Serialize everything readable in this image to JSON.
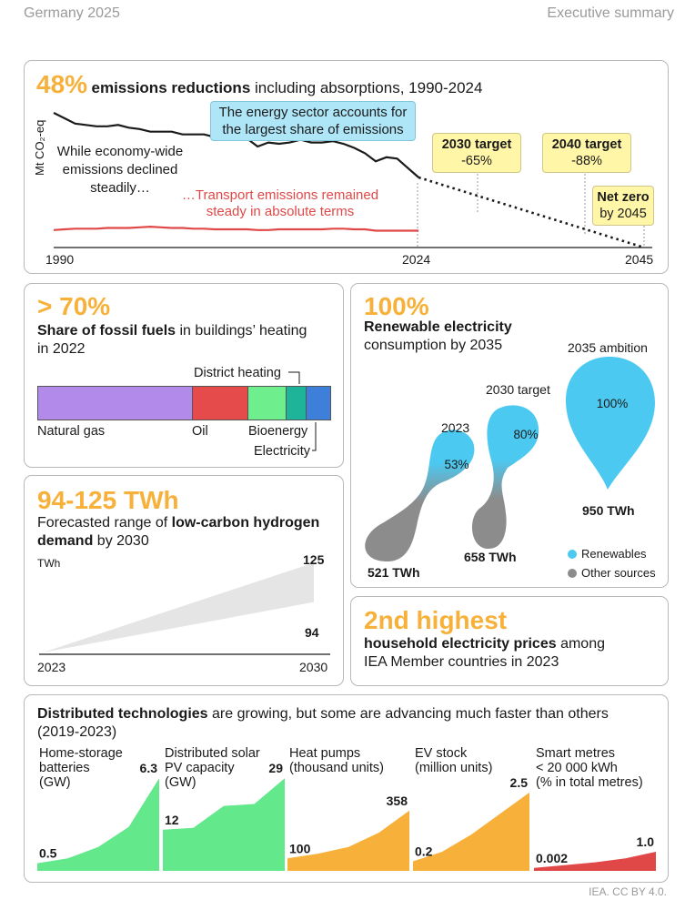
{
  "header": {
    "left": "Germany 2025",
    "right": "Executive summary"
  },
  "emissions": {
    "big": "48%",
    "title_bold": "emissions reductions",
    "title_rest": " including absorptions, 1990-2024",
    "y_label": "Mt CO₂-eq",
    "note_economy": [
      "While economy-wide",
      "emissions declined",
      "steadily…"
    ],
    "note_energy": [
      "The energy sector accounts for",
      "the largest share of emissions"
    ],
    "note_transport": [
      "…Transport emissions remained",
      "steady in absolute terms"
    ],
    "target_2030": [
      "2030 target",
      "-65%"
    ],
    "target_2040": [
      "2040 target",
      "-88%"
    ],
    "net_zero": [
      "Net zero",
      "by 2045"
    ],
    "x_ticks": [
      "1990",
      "2024",
      "2045"
    ],
    "colors": {
      "total": "#1a1a1a",
      "transport": "#e04848",
      "callout_energy": "#aee6f8",
      "callout_target": "#fff6a8"
    }
  },
  "fossil": {
    "big": "> 70%",
    "title_bold": "Share of fossil fuels",
    "title_rest": " in buildings’ heating",
    "title_line2": "in 2022",
    "segments": [
      {
        "name": "Natural gas",
        "share": 53,
        "color": "#b28aea"
      },
      {
        "name": "Oil",
        "share": 19,
        "color": "#e64b4b"
      },
      {
        "name": "Bioenergy",
        "share": 13,
        "color": "#6fee8d"
      },
      {
        "name": "District heating",
        "share": 7,
        "color": "#1db49a"
      },
      {
        "name": "Electricity",
        "share": 8,
        "color": "#3d7fd9"
      }
    ]
  },
  "renewables": {
    "big": "100%",
    "title_bold": "Renewable electricity",
    "title_line2": "consumption by 2035",
    "points": [
      {
        "label": "2023",
        "share": "53%",
        "total": "521 TWh"
      },
      {
        "label": "2030 target",
        "share": "80%",
        "total": "658 TWh"
      },
      {
        "label": "2035 ambition",
        "share": "100%",
        "total": "950 TWh"
      }
    ],
    "legend": [
      {
        "name": "Renewables",
        "color": "#4cc9f0"
      },
      {
        "name": "Other sources",
        "color": "#8c8c8c"
      }
    ]
  },
  "hydrogen": {
    "big": "94-125 TWh",
    "title_rest": "Forecasted range of ",
    "title_bold": "low-carbon hydrogen",
    "title_bold2": "demand",
    "title_end": " by 2030",
    "unit": "TWh",
    "x_ticks": [
      "2023",
      "2030"
    ],
    "high_label": "125",
    "low_label": "94"
  },
  "prices": {
    "big": "2nd highest",
    "title_bold": "household electricity prices",
    "title_rest": " among",
    "title_line2": "IEA Member countries in 2023"
  },
  "distributed": {
    "title_bold": "Distributed technologies",
    "title_rest": " are growing, but some are advancing much faster than others",
    "period": "(2019-2023)",
    "footer": "IEA. CC BY 4.0."
  },
  "chart_data": [
    {
      "type": "line",
      "title": "48% emissions reductions including absorptions, 1990-2024",
      "ylabel": "Mt CO₂-eq",
      "x": [
        1990,
        1991,
        1992,
        1993,
        1994,
        1995,
        1996,
        1997,
        1998,
        1999,
        2000,
        2001,
        2002,
        2003,
        2004,
        2005,
        2006,
        2007,
        2008,
        2009,
        2010,
        2011,
        2012,
        2013,
        2014,
        2015,
        2016,
        2017,
        2018,
        2019,
        2020,
        2021,
        2022,
        2023,
        2024
      ],
      "series": [
        {
          "values": [
            100,
            96,
            92,
            91,
            90,
            90,
            91,
            89,
            88,
            86,
            86,
            86,
            84,
            84,
            84,
            82,
            82,
            80,
            81,
            75,
            78,
            77,
            78,
            80,
            78,
            78,
            79,
            77,
            74,
            70,
            64,
            67,
            66,
            59,
            52
          ]
        },
        {
          "values": [
            13,
            13.5,
            14,
            14,
            14,
            14.5,
            14.5,
            14.5,
            15,
            15.5,
            15,
            14.5,
            14.5,
            14,
            14,
            13.5,
            13.5,
            13.5,
            13.5,
            13,
            13,
            13.5,
            13.5,
            13.5,
            13.5,
            13.5,
            14,
            14,
            13.5,
            13.5,
            12.5,
            12.5,
            12.5,
            12.5,
            12.5
          ]
        }
      ],
      "projection": {
        "x": [
          2024,
          2045
        ],
        "values": [
          52,
          0
        ]
      },
      "targets": [
        {
          "year": 2030,
          "label": "2030 target",
          "value": "-65%"
        },
        {
          "year": 2040,
          "label": "2040 target",
          "value": "-88%"
        },
        {
          "year": 2045,
          "label": "Net zero",
          "value": "by 2045"
        }
      ],
      "x_ticks": [
        1990,
        2024,
        2045
      ]
    },
    {
      "type": "bar",
      "title": "Share of fossil fuels in buildings' heating in 2022",
      "categories": [
        "Natural gas",
        "Oil",
        "Bioenergy",
        "District heating",
        "Electricity"
      ],
      "values": [
        53,
        19,
        13,
        7,
        8
      ]
    },
    {
      "type": "area",
      "title": "Forecasted range of low-carbon hydrogen demand by 2030",
      "ylabel": "TWh",
      "x": [
        2023,
        2030
      ],
      "series": [
        {
          "values": [
            0,
            94
          ]
        },
        {
          "values": [
            0,
            125
          ]
        }
      ]
    },
    {
      "type": "area",
      "title": "Distributed technologies are growing, but some are advancing much faster than others (2019-2023)",
      "x": [
        2019,
        2020,
        2021,
        2022,
        2023
      ],
      "series": [
        {
          "name": "Home-storage batteries (GW)",
          "color": "#63e88c",
          "values": [
            0.5,
            1.0,
            1.8,
            3.3,
            6.3
          ],
          "first_label": "0.5",
          "last_label": "6.3"
        },
        {
          "name": "Distributed solar PV capacity (GW)",
          "color": "#63e88c",
          "values": [
            12,
            13,
            18,
            18.5,
            29
          ],
          "first_label": "12",
          "last_label": "29"
        },
        {
          "name": "Heat pumps (thousand units)",
          "color": "#f7b13a",
          "values": [
            100,
            130,
            170,
            240,
            358
          ],
          "first_label": "100",
          "last_label": "358"
        },
        {
          "name": "EV stock (million units)",
          "color": "#f7b13a",
          "values": [
            0.2,
            0.6,
            1.1,
            1.8,
            2.5
          ],
          "first_label": "0.2",
          "last_label": "2.5"
        },
        {
          "name": "Smart metres < 20 000 kWh (% in total metres)",
          "color": "#e04848",
          "values": [
            0.002,
            0.1,
            0.3,
            0.5,
            1.0
          ],
          "first_label": "0.002",
          "last_label": "1.0"
        }
      ]
    }
  ]
}
